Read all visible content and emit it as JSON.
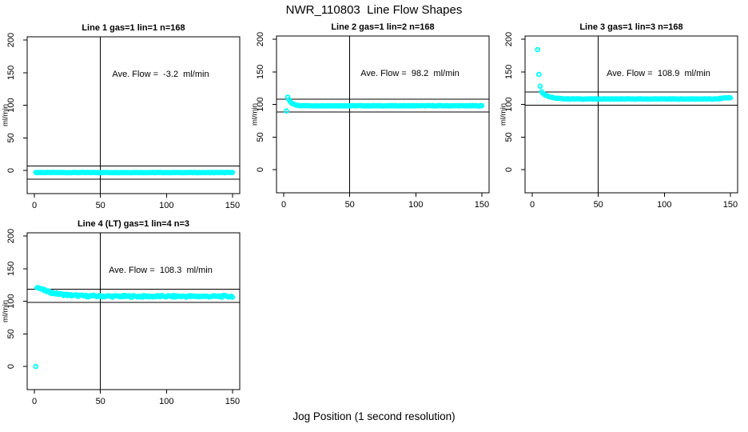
{
  "title": "NWR_110803  Line Flow Shapes",
  "xlabel": "Jog Position (1 second resolution)",
  "colors": {
    "point": "#00ffff",
    "line": "#000000",
    "background": "#ffffff",
    "text": "#000000"
  },
  "chart_data": [
    {
      "type": "scatter",
      "title": "Line 1 gas=1 lin=1 n=168",
      "n": 168,
      "ylabel": "ml/min",
      "annotation": "Ave. Flow =  -3.2  ml/min",
      "ave_flow_ml_min": -3.2,
      "x_ticks": [
        0,
        50,
        100,
        150
      ],
      "y_ticks": [
        0,
        50,
        100,
        150,
        200
      ],
      "xlim": [
        -5.5,
        155.5
      ],
      "ylim": [
        -35.5,
        205
      ],
      "vline_x": 50,
      "hlines_y": [
        6.8,
        -13.2
      ],
      "grid": false,
      "legend": null,
      "outliers": [],
      "points_model": {
        "description": "flat flow trace at average value",
        "x_start": 1,
        "x_end": 150,
        "x_step": 1,
        "y_start": -3.2,
        "plateau": -3.2,
        "tau": 1,
        "noise": 0.3
      }
    },
    {
      "type": "scatter",
      "title": "Line 2 gas=1 lin=2 n=168",
      "n": 168,
      "ylabel": "ml/min",
      "annotation": "Ave. Flow =  98.2  ml/min",
      "ave_flow_ml_min": 98.2,
      "x_ticks": [
        0,
        50,
        100,
        150
      ],
      "y_ticks": [
        0,
        50,
        100,
        150,
        200
      ],
      "xlim": [
        -5.5,
        155.5
      ],
      "ylim": [
        -35.5,
        205
      ],
      "vline_x": 50,
      "hlines_y": [
        108.2,
        88.2
      ],
      "grid": false,
      "legend": null,
      "outliers": [
        [
          2,
          90
        ]
      ],
      "points_model": {
        "description": "initial overshoot ~111 decaying to plateau ~98",
        "x_start": 3,
        "x_end": 150,
        "x_step": 1,
        "y_start": 111,
        "plateau": 98.0,
        "tau": 2.6,
        "noise": 0.4
      }
    },
    {
      "type": "scatter",
      "title": "Line 3 gas=1 lin=3 n=168",
      "n": 168,
      "ylabel": "ml/min",
      "annotation": "Ave. Flow =  108.9  ml/min",
      "ave_flow_ml_min": 108.9,
      "x_ticks": [
        0,
        50,
        100,
        150
      ],
      "y_ticks": [
        0,
        50,
        100,
        150,
        200
      ],
      "xlim": [
        -5.5,
        155.5
      ],
      "ylim": [
        -35.5,
        205
      ],
      "vline_x": 50,
      "hlines_y": [
        118.9,
        98.9
      ],
      "grid": false,
      "legend": null,
      "outliers": [
        [
          4,
          184
        ],
        [
          5,
          146
        ],
        [
          6,
          128
        ]
      ],
      "points_model": {
        "description": "high start spikes then decay to plateau ~108 with slight rise at end",
        "x_start": 7,
        "x_end": 150,
        "x_step": 1,
        "y_start": 119.5,
        "plateau": 108.4,
        "tau": 5,
        "noise": 0.4,
        "tail_rise": {
          "from": 141,
          "amp": 1.8
        }
      }
    },
    {
      "type": "scatter",
      "title": "Line 4 (LT) gas=1 lin=4 n=3",
      "n": 3,
      "ylabel": "ml/min",
      "annotation": "Ave. Flow =  108.3  ml/min",
      "ave_flow_ml_min": 108.3,
      "x_ticks": [
        0,
        50,
        100,
        150
      ],
      "y_ticks": [
        0,
        50,
        100,
        150,
        200
      ],
      "xlim": [
        -5.5,
        155.5
      ],
      "ylim": [
        -35.5,
        205
      ],
      "vline_x": 50,
      "hlines_y": [
        118.3,
        98.3
      ],
      "grid": false,
      "legend": null,
      "outliers": [
        [
          1,
          0
        ]
      ],
      "points_model": {
        "description": "slow noisy decay from ~122 to plateau ~107.5",
        "x_start": 2,
        "x_end": 150,
        "x_step": 1,
        "y_start": 122,
        "plateau": 107.5,
        "tau": 12,
        "noise": 1.4
      }
    }
  ]
}
